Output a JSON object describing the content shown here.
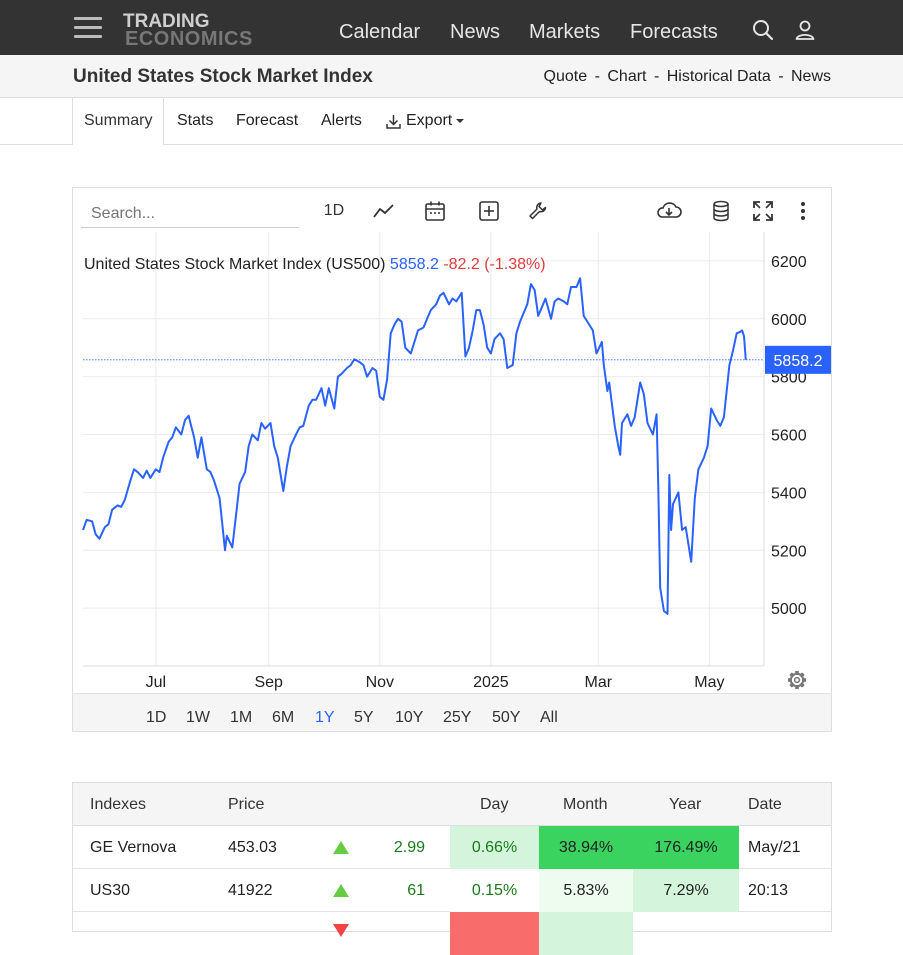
{
  "navbar": {
    "logo_top": "TRADING",
    "logo_bottom": "ECONOMICS",
    "links": [
      "Calendar",
      "News",
      "Markets",
      "Forecasts"
    ]
  },
  "title_strip": {
    "title": "United States Stock Market Index",
    "subnav": [
      "Quote",
      "Chart",
      "Historical Data",
      "News"
    ],
    "separator": "-"
  },
  "tabs": {
    "items": [
      "Summary",
      "Stats",
      "Forecast",
      "Alerts",
      "Export"
    ],
    "active": "Summary"
  },
  "toolbar": {
    "search_placeholder": "Search...",
    "interval_label": "1D"
  },
  "chart_data": {
    "type": "line",
    "title": "United States Stock Market Index (US500)",
    "last_value": "5858.2",
    "change": "-82.2 (-1.38%)",
    "last_value_label": "5858.2",
    "ylim": [
      4800,
      6300
    ],
    "yticks": [
      5000,
      5200,
      5400,
      5600,
      5800,
      6000,
      6200
    ],
    "xticks": [
      {
        "label": "Jul",
        "date": "2024-07-01"
      },
      {
        "label": "Sep",
        "date": "2024-09-01"
      },
      {
        "label": "Nov",
        "date": "2024-11-01"
      },
      {
        "label": "2025",
        "date": "2025-01-01"
      },
      {
        "label": "Mar",
        "date": "2025-03-01"
      },
      {
        "label": "May",
        "date": "2025-05-01"
      }
    ],
    "x_range": [
      "2024-05-22",
      "2025-05-31"
    ],
    "grid": true,
    "color": "#2962ff",
    "series": [
      {
        "values": [
          [
            "2024-05-22",
            5270
          ],
          [
            "2024-05-24",
            5305
          ],
          [
            "2024-05-27",
            5300
          ],
          [
            "2024-05-29",
            5255
          ],
          [
            "2024-05-31",
            5240
          ],
          [
            "2024-06-03",
            5280
          ],
          [
            "2024-06-05",
            5290
          ],
          [
            "2024-06-07",
            5340
          ],
          [
            "2024-06-10",
            5355
          ],
          [
            "2024-06-12",
            5350
          ],
          [
            "2024-06-14",
            5375
          ],
          [
            "2024-06-17",
            5440
          ],
          [
            "2024-06-19",
            5480
          ],
          [
            "2024-06-21",
            5470
          ],
          [
            "2024-06-24",
            5450
          ],
          [
            "2024-06-26",
            5475
          ],
          [
            "2024-06-28",
            5450
          ],
          [
            "2024-07-01",
            5480
          ],
          [
            "2024-07-03",
            5470
          ],
          [
            "2024-07-05",
            5520
          ],
          [
            "2024-07-08",
            5575
          ],
          [
            "2024-07-10",
            5590
          ],
          [
            "2024-07-12",
            5625
          ],
          [
            "2024-07-15",
            5600
          ],
          [
            "2024-07-17",
            5650
          ],
          [
            "2024-07-19",
            5665
          ],
          [
            "2024-07-22",
            5590
          ],
          [
            "2024-07-24",
            5520
          ],
          [
            "2024-07-26",
            5590
          ],
          [
            "2024-07-29",
            5480
          ],
          [
            "2024-07-31",
            5470
          ],
          [
            "2024-08-02",
            5440
          ],
          [
            "2024-08-05",
            5380
          ],
          [
            "2024-08-07",
            5260
          ],
          [
            "2024-08-08",
            5200
          ],
          [
            "2024-08-09",
            5250
          ],
          [
            "2024-08-12",
            5210
          ],
          [
            "2024-08-14",
            5320
          ],
          [
            "2024-08-16",
            5430
          ],
          [
            "2024-08-19",
            5470
          ],
          [
            "2024-08-21",
            5560
          ],
          [
            "2024-08-23",
            5600
          ],
          [
            "2024-08-26",
            5580
          ],
          [
            "2024-08-28",
            5640
          ],
          [
            "2024-08-30",
            5620
          ],
          [
            "2024-09-02",
            5640
          ],
          [
            "2024-09-04",
            5560
          ],
          [
            "2024-09-06",
            5520
          ],
          [
            "2024-09-09",
            5405
          ],
          [
            "2024-09-11",
            5490
          ],
          [
            "2024-09-13",
            5560
          ],
          [
            "2024-09-16",
            5600
          ],
          [
            "2024-09-18",
            5625
          ],
          [
            "2024-09-20",
            5630
          ],
          [
            "2024-09-23",
            5700
          ],
          [
            "2024-09-25",
            5720
          ],
          [
            "2024-09-27",
            5720
          ],
          [
            "2024-09-30",
            5760
          ],
          [
            "2024-10-02",
            5700
          ],
          [
            "2024-10-04",
            5760
          ],
          [
            "2024-10-07",
            5690
          ],
          [
            "2024-10-09",
            5800
          ],
          [
            "2024-10-11",
            5810
          ],
          [
            "2024-10-14",
            5830
          ],
          [
            "2024-10-16",
            5840
          ],
          [
            "2024-10-18",
            5860
          ],
          [
            "2024-10-21",
            5850
          ],
          [
            "2024-10-23",
            5840
          ],
          [
            "2024-10-25",
            5800
          ],
          [
            "2024-10-28",
            5830
          ],
          [
            "2024-10-30",
            5820
          ],
          [
            "2024-11-01",
            5730
          ],
          [
            "2024-11-03",
            5720
          ],
          [
            "2024-11-05",
            5790
          ],
          [
            "2024-11-07",
            5950
          ],
          [
            "2024-11-09",
            5980
          ],
          [
            "2024-11-11",
            6000
          ],
          [
            "2024-11-13",
            5990
          ],
          [
            "2024-11-15",
            5900
          ],
          [
            "2024-11-18",
            5880
          ],
          [
            "2024-11-20",
            5920
          ],
          [
            "2024-11-22",
            5960
          ],
          [
            "2024-11-25",
            5970
          ],
          [
            "2024-11-27",
            6000
          ],
          [
            "2024-11-29",
            6030
          ],
          [
            "2024-12-02",
            6050
          ],
          [
            "2024-12-04",
            6080
          ],
          [
            "2024-12-06",
            6090
          ],
          [
            "2024-12-09",
            6050
          ],
          [
            "2024-12-11",
            6070
          ],
          [
            "2024-12-13",
            6060
          ],
          [
            "2024-12-16",
            6090
          ],
          [
            "2024-12-18",
            5870
          ],
          [
            "2024-12-20",
            5900
          ],
          [
            "2024-12-22",
            5960
          ],
          [
            "2024-12-24",
            6030
          ],
          [
            "2024-12-26",
            6030
          ],
          [
            "2024-12-28",
            5980
          ],
          [
            "2024-12-30",
            5900
          ],
          [
            "2025-01-01",
            5880
          ],
          [
            "2025-01-03",
            5930
          ],
          [
            "2025-01-06",
            5950
          ],
          [
            "2025-01-08",
            5930
          ],
          [
            "2025-01-10",
            5830
          ],
          [
            "2025-01-13",
            5840
          ],
          [
            "2025-01-15",
            5950
          ],
          [
            "2025-01-17",
            5990
          ],
          [
            "2025-01-21",
            6050
          ],
          [
            "2025-01-23",
            6120
          ],
          [
            "2025-01-25",
            6100
          ],
          [
            "2025-01-27",
            6010
          ],
          [
            "2025-01-29",
            6040
          ],
          [
            "2025-01-31",
            6070
          ],
          [
            "2025-02-03",
            6000
          ],
          [
            "2025-02-05",
            6060
          ],
          [
            "2025-02-07",
            6070
          ],
          [
            "2025-02-10",
            6060
          ],
          [
            "2025-02-12",
            6050
          ],
          [
            "2025-02-14",
            6110
          ],
          [
            "2025-02-17",
            6110
          ],
          [
            "2025-02-19",
            6140
          ],
          [
            "2025-02-21",
            6010
          ],
          [
            "2025-02-24",
            5980
          ],
          [
            "2025-02-26",
            5960
          ],
          [
            "2025-02-28",
            5880
          ],
          [
            "2025-03-03",
            5920
          ],
          [
            "2025-03-04",
            5840
          ],
          [
            "2025-03-06",
            5750
          ],
          [
            "2025-03-07",
            5780
          ],
          [
            "2025-03-10",
            5630
          ],
          [
            "2025-03-12",
            5560
          ],
          [
            "2025-03-13",
            5530
          ],
          [
            "2025-03-14",
            5640
          ],
          [
            "2025-03-17",
            5670
          ],
          [
            "2025-03-19",
            5630
          ],
          [
            "2025-03-21",
            5660
          ],
          [
            "2025-03-24",
            5780
          ],
          [
            "2025-03-26",
            5740
          ],
          [
            "2025-03-28",
            5640
          ],
          [
            "2025-03-31",
            5600
          ],
          [
            "2025-04-02",
            5670
          ],
          [
            "2025-04-03",
            5400
          ],
          [
            "2025-04-04",
            5070
          ],
          [
            "2025-04-06",
            4990
          ],
          [
            "2025-04-08",
            4980
          ],
          [
            "2025-04-09",
            5460
          ],
          [
            "2025-04-10",
            5270
          ],
          [
            "2025-04-11",
            5360
          ],
          [
            "2025-04-14",
            5400
          ],
          [
            "2025-04-16",
            5270
          ],
          [
            "2025-04-18",
            5280
          ],
          [
            "2025-04-21",
            5160
          ],
          [
            "2025-04-23",
            5380
          ],
          [
            "2025-04-25",
            5480
          ],
          [
            "2025-04-28",
            5520
          ],
          [
            "2025-04-30",
            5560
          ],
          [
            "2025-05-02",
            5690
          ],
          [
            "2025-05-05",
            5650
          ],
          [
            "2025-05-07",
            5630
          ],
          [
            "2025-05-09",
            5660
          ],
          [
            "2025-05-12",
            5840
          ],
          [
            "2025-05-14",
            5890
          ],
          [
            "2025-05-16",
            5950
          ],
          [
            "2025-05-18",
            5955
          ],
          [
            "2025-05-19",
            5960
          ],
          [
            "2025-05-20",
            5940
          ],
          [
            "2025-05-21",
            5858.2
          ]
        ]
      }
    ]
  },
  "range_buttons": {
    "items": [
      "1D",
      "1W",
      "1M",
      "6M",
      "1Y",
      "5Y",
      "10Y",
      "25Y",
      "50Y",
      "All"
    ],
    "active": "1Y"
  },
  "table": {
    "headers": [
      "Indexes",
      "Price",
      "Day",
      "Month",
      "Year",
      "Date"
    ],
    "rows": [
      {
        "name": "GE Vernova",
        "price": "453.03",
        "dir": "up",
        "change": "2.99",
        "day": "0.66%",
        "month": "38.94%",
        "year": "176.49%",
        "date": "May/21",
        "day_bg": "#d4f5dc",
        "month_bg": "#3ad35f",
        "year_bg": "#3ad35f"
      },
      {
        "name": "US30",
        "price": "41922",
        "dir": "up",
        "change": "61",
        "day": "0.15%",
        "month": "5.83%",
        "year": "7.29%",
        "date": "20:13",
        "day_bg": "#ffffff",
        "month_bg": "#eefcf0",
        "year_bg": "#d4f5dc"
      }
    ],
    "partial_row": {
      "day_bg": "#f86c6c",
      "month_bg": "#d4f5dc"
    },
    "colors": {
      "up": "#66cc44",
      "down": "#ee4444",
      "change_up_text": "#1a7a1a"
    }
  }
}
